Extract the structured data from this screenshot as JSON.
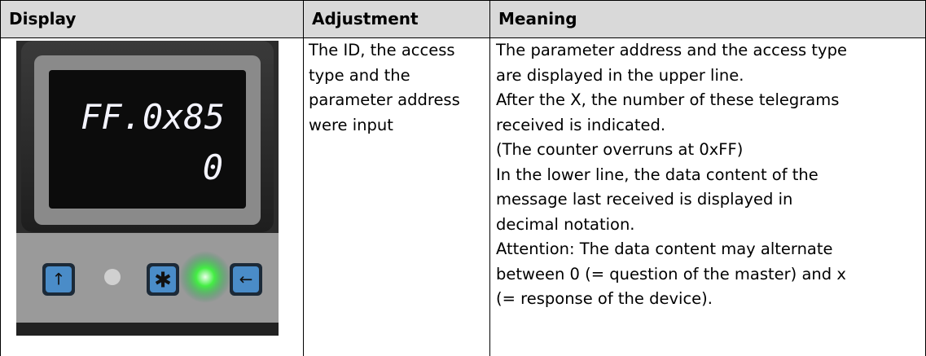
{
  "table": {
    "header": [
      "Display",
      "Adjustment",
      "Meaning"
    ],
    "display": {
      "line1": "FF.0x85",
      "line2": "0"
    },
    "adjustment": [
      "The ID, the access",
      "type and the",
      "parameter address",
      "were input"
    ],
    "meaning": [
      "The parameter address and the access type",
      "are displayed in the upper line.",
      "After the X, the number of these telegrams",
      "received is indicated.",
      "(The counter overruns at 0xFF)",
      "In the lower line, the data content of the",
      "message last received is displayed in",
      "decimal notation.",
      "Attention: The data content may alternate",
      "between 0 (= question of the master) and x",
      "(= response of the device)."
    ]
  }
}
